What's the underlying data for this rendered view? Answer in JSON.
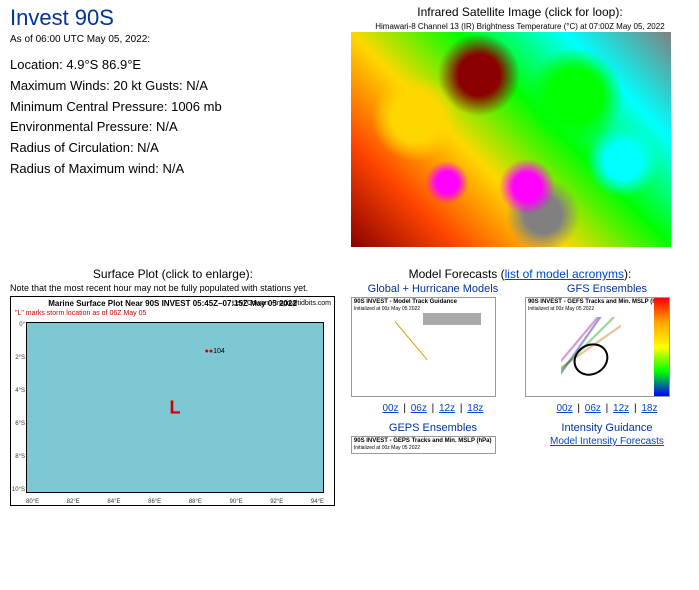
{
  "header": {
    "title": "Invest 90S",
    "timestamp": "As of 06:00 UTC May 05, 2022:"
  },
  "stats": {
    "location": "Location: 4.9°S 86.9°E",
    "max_winds": "Maximum Winds: 20 kt  Gusts: N/A",
    "min_pressure": "Minimum Central Pressure: 1006 mb",
    "env_pressure": "Environmental Pressure: N/A",
    "radius_circ": "Radius of Circulation: N/A",
    "radius_max_wind": "Radius of Maximum wind: N/A"
  },
  "satellite": {
    "header": "Infrared Satellite Image (click for loop):",
    "image_title": "Himawari-8 Channel 13 (IR) Brightness Temperature (°C) at 07:00Z May 05, 2022"
  },
  "surface": {
    "header": "Surface Plot (click to enlarge):",
    "note": "Note that the most recent hour may not be fully populated with stations yet.",
    "plot_title": "Marine Surface Plot Near 90S INVEST 05:45Z–07:15Z May 05 2022",
    "plot_subtitle": "\"L\" marks storm location as of 06Z May 05",
    "plot_credit": "Levi Cowan - tropicaltidbits.com",
    "L_marker": "L",
    "x_ticks": [
      "80°E",
      "82°E",
      "84°E",
      "86°E",
      "88°E",
      "90°E",
      "92°E",
      "94°E"
    ],
    "y_ticks": [
      "0°",
      "2°S",
      "4°S",
      "6°S",
      "8°S",
      "10°S"
    ],
    "station_label": "104"
  },
  "models": {
    "header_prefix": "Model Forecasts (",
    "header_link": "list of model acronyms",
    "header_suffix": "):",
    "global": {
      "title": "Global + Hurricane Models",
      "img_title": "90S INVEST - Model Track Guidance",
      "img_sub": "Initialized at 00z May 05 2022"
    },
    "gfs": {
      "title": "GFS Ensembles",
      "img_title": "90S INVEST - GEFS Tracks and Min. MSLP (hPa)",
      "img_sub": "Initialized at 00z May 05 2022"
    },
    "hours": {
      "h00": "00z",
      "h06": "06z",
      "h12": "12z",
      "h18": "18z",
      "sep": " | "
    },
    "geps": {
      "title": "GEPS Ensembles",
      "img_title": "90S INVEST - GEPS Tracks and Min. MSLP (hPa)",
      "img_sub": "Initialized at 00z May 05 2022"
    },
    "intensity": {
      "title": "Intensity Guidance",
      "link": "Model Intensity Forecasts"
    }
  },
  "colors": {
    "title_color": "#003399",
    "link_color": "#0044cc",
    "plot_bg": "#7ec8d4",
    "L_color": "#cc0000"
  }
}
